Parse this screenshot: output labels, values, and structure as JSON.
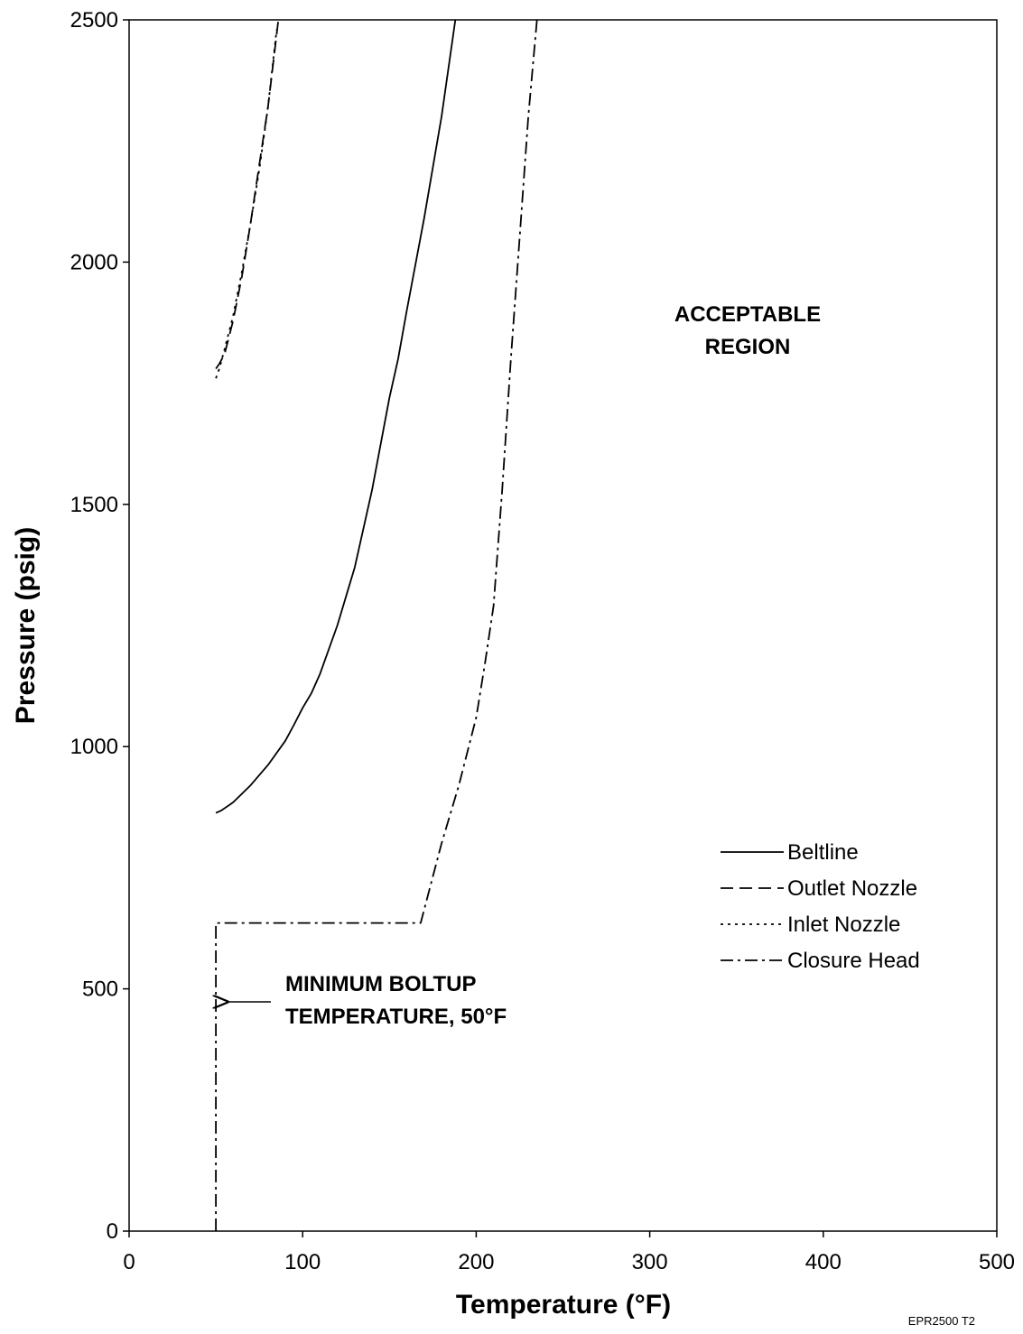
{
  "chart_data": {
    "type": "line",
    "xlabel": "Temperature (°F)",
    "ylabel": "Pressure (psig)",
    "xlim": [
      0,
      500
    ],
    "ylim": [
      0,
      2500
    ],
    "x_ticks": [
      "0",
      "100",
      "200",
      "300",
      "400",
      "500"
    ],
    "y_ticks": [
      "0",
      "500",
      "1000",
      "1500",
      "2000",
      "2500"
    ],
    "grid": false,
    "legend_position": "right",
    "series": [
      {
        "name": "Beltline",
        "style": "solid",
        "x": [
          50,
          53,
          60,
          70,
          80,
          90,
          95,
          100,
          105,
          110,
          120,
          130,
          140,
          150,
          155,
          160,
          170,
          180,
          188
        ],
        "y": [
          863,
          868,
          885,
          920,
          962,
          1012,
          1045,
          1080,
          1110,
          1150,
          1250,
          1370,
          1530,
          1720,
          1800,
          1900,
          2090,
          2300,
          2500
        ]
      },
      {
        "name": "Outlet Nozzle",
        "style": "dashed",
        "x": [
          50,
          52,
          55,
          60,
          65,
          70,
          75,
          80,
          86
        ],
        "y": [
          1780,
          1790,
          1810,
          1880,
          1970,
          2080,
          2200,
          2320,
          2500
        ]
      },
      {
        "name": "Inlet Nozzle",
        "style": "dotted",
        "x": [
          50,
          52,
          55,
          60,
          65,
          70,
          75,
          80,
          85
        ],
        "y": [
          1760,
          1780,
          1820,
          1890,
          1980,
          2080,
          2190,
          2320,
          2480
        ]
      },
      {
        "name": "Closure Head",
        "style": "dashdot",
        "x": [
          50,
          50,
          168,
          180,
          190,
          200,
          205,
          210,
          215,
          220,
          225,
          230,
          235
        ],
        "y": [
          0,
          636,
          636,
          800,
          920,
          1060,
          1170,
          1290,
          1530,
          1800,
          2050,
          2300,
          2500
        ]
      }
    ],
    "annotations": {
      "region_line1": "ACCEPTABLE",
      "region_line2": "REGION",
      "boltup_line1": "MINIMUM BOLTUP",
      "boltup_line2": "TEMPERATURE, 50°F"
    },
    "figure_id": "EPR2500 T2"
  }
}
